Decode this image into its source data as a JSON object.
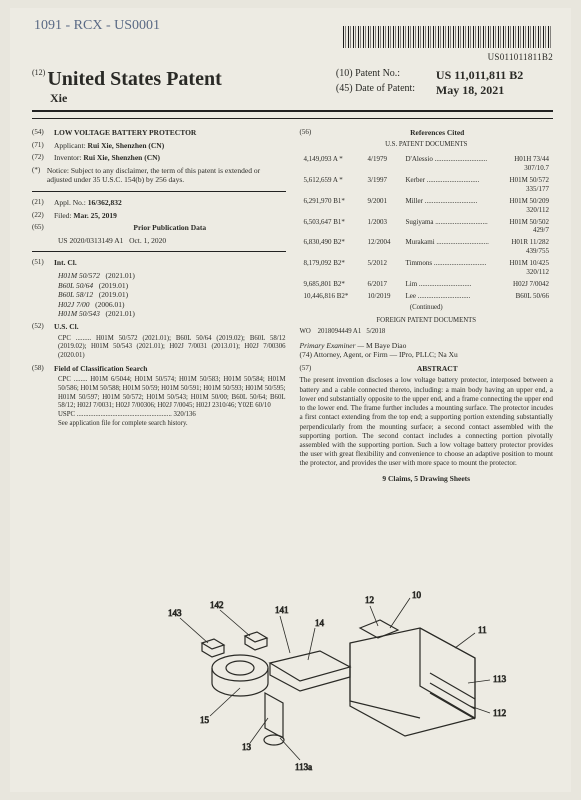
{
  "handwritten_note": "1091 - RCX - US0001",
  "barcode_text": "US011011811B2",
  "header": {
    "country": "United States Patent",
    "sup12": "(12)",
    "inventor_line": "Xie",
    "patent_no_label": "(10) Patent No.:",
    "patent_no": "US 11,011,811 B2",
    "date_label": "(45) Date of Patent:",
    "date": "May 18, 2021"
  },
  "left": {
    "f54_tag": "(54)",
    "f54": "LOW VOLTAGE BATTERY PROTECTOR",
    "f71_tag": "(71)",
    "f71_lbl": "Applicant:",
    "f71_val": "Rui Xie, Shenzhen (CN)",
    "f72_tag": "(72)",
    "f72_lbl": "Inventor:",
    "f72_val": "Rui Xie, Shenzhen (CN)",
    "notice_tag": "(*)",
    "notice_lbl": "Notice:",
    "notice_txt": "Subject to any disclaimer, the term of this patent is extended or adjusted under 35 U.S.C. 154(b) by 256 days.",
    "f21_tag": "(21)",
    "f21_lbl": "Appl. No.:",
    "f21_val": "16/362,832",
    "f22_tag": "(22)",
    "f22_lbl": "Filed:",
    "f22_val": "Mar. 25, 2019",
    "f65_tag": "(65)",
    "f65_head": "Prior Publication Data",
    "f65_pub": "US 2020/0313149 A1",
    "f65_date": "Oct. 1, 2020",
    "f51_tag": "(51)",
    "f51_lbl": "Int. Cl.",
    "intcl": [
      {
        "c": "H01M 50/572",
        "y": "(2021.01)"
      },
      {
        "c": "B60L 50/64",
        "y": "(2019.01)"
      },
      {
        "c": "B60L 58/12",
        "y": "(2019.01)"
      },
      {
        "c": "H02J 7/00",
        "y": "(2006.01)"
      },
      {
        "c": "H01M 50/543",
        "y": "(2021.01)"
      }
    ],
    "f52_tag": "(52)",
    "f52_lbl": "U.S. Cl.",
    "cpc": "CPC ......... H01M 50/572 (2021.01); B60L 50/64 (2019.02); B60L 58/12 (2019.02); H01M 50/543 (2021.01); H02J 7/0031 (2013.01); H02J 7/00306 (2020.01)",
    "f58_tag": "(58)",
    "f58_lbl": "Field of Classification Search",
    "f58_cpc": "CPC ........ H01M 6/5044; H01M 50/574; H01M 50/583; H01M 50/584; H01M 50/586; H01M 50/588; H01M 50/59; H01M 50/591; H01M 50/593; H01M 50/595; H01M 50/597; H01M 50/572; H01M 50/543; H01M 50/00; B60L 50/64; B60L 58/12; H02J 7/0031; H02J 7/00306; H02J 7/0045; H02J 2310/46; Y02E 60/10",
    "uspc": "USPC ........................................................ 320/136",
    "seefile": "See application file for complete search history."
  },
  "right": {
    "f56_tag": "(56)",
    "f56_head": "References Cited",
    "us_head": "U.S. PATENT DOCUMENTS",
    "us_refs": [
      {
        "n": "4,149,093 A *",
        "d": "4/1979",
        "a": "D'Alessio",
        "c": "H01H 73/44",
        "sub": "307/10.7"
      },
      {
        "n": "5,612,659 A *",
        "d": "3/1997",
        "a": "Kerber",
        "c": "H01M 50/572",
        "sub": "335/177"
      },
      {
        "n": "6,291,970 B1*",
        "d": "9/2001",
        "a": "Miller",
        "c": "H01M 50/209",
        "sub": "320/112"
      },
      {
        "n": "6,503,647 B1*",
        "d": "1/2003",
        "a": "Sugiyama",
        "c": "H01M 50/502",
        "sub": "429/7"
      },
      {
        "n": "6,830,490 B2*",
        "d": "12/2004",
        "a": "Murakami",
        "c": "H01R 11/282",
        "sub": "439/755"
      },
      {
        "n": "8,179,092 B2*",
        "d": "5/2012",
        "a": "Timmons",
        "c": "H01M 10/425",
        "sub": "320/112"
      },
      {
        "n": "9,685,801 B2*",
        "d": "6/2017",
        "a": "Lim",
        "c": "H02J 7/0042",
        "sub": ""
      },
      {
        "n": "10,446,816 B2*",
        "d": "10/2019",
        "a": "Lee",
        "c": "B60L 50/66",
        "sub": ""
      }
    ],
    "continued": "(Continued)",
    "foreign_head": "FOREIGN PATENT DOCUMENTS",
    "foreign": {
      "cc": "WO",
      "n": "2018094449 A1",
      "d": "5/2018"
    },
    "examiner_lbl": "Primary Examiner —",
    "examiner": "M Baye Diao",
    "attorney_lbl": "(74) Attorney, Agent, or Firm —",
    "attorney": "IPro, PLLC; Na Xu",
    "abstract_tag": "(57)",
    "abstract_head": "ABSTRACT",
    "abstract": "The present invention discloses a low voltage battery protector, interposed between a battery and a cable connected thereto, including: a main body having an upper end, a lower end substantially opposite to the upper end, and a frame connecting the upper end to the lower end. The frame further includes a mounting surface. The protector incudes a first contact extending from the top end; a supporting portion extending substantially perpendicularly from the mounting surface; a second contact assembled with the supporting portion. The second contact includes a connecting portion pivotally assembled with the supporting portion. Such a low voltage battery protector provides the user with great flexibility and convenience to choose an adaptive position to mount the protector, and provides the user with more space to mount the protector.",
    "claims": "9 Claims, 5 Drawing Sheets"
  },
  "drawing_labels": [
    "12",
    "10",
    "143",
    "142",
    "141",
    "14",
    "11",
    "113",
    "112",
    "15",
    "13",
    "113a"
  ]
}
